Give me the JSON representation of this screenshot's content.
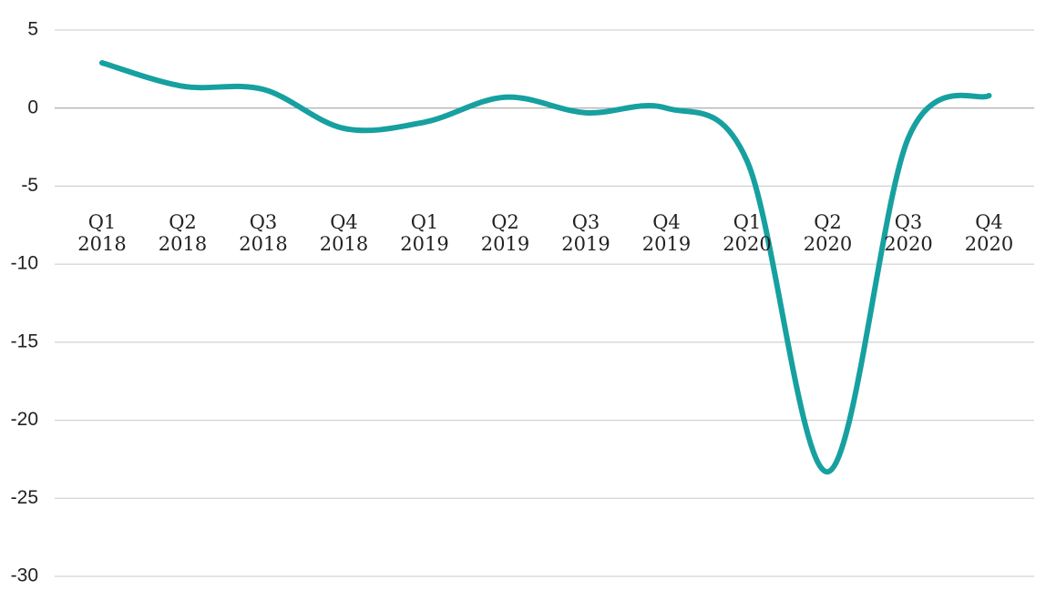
{
  "chart_data": {
    "type": "line",
    "categories": [
      "Q1 2018",
      "Q2 2018",
      "Q3 2018",
      "Q4 2018",
      "Q1 2019",
      "Q2 2019",
      "Q3 2019",
      "Q4 2019",
      "Q1 2020",
      "Q2 2020",
      "Q3 2020",
      "Q4 2020"
    ],
    "series": [
      {
        "color": "#17a0a0",
        "values": [
          2.9,
          1.4,
          1.2,
          -1.3,
          -0.9,
          0.7,
          -0.3,
          0.0,
          -3.4,
          -23.3,
          -1.9,
          0.8
        ]
      }
    ],
    "ylim": [
      -30,
      5
    ],
    "yticks": [
      5,
      0,
      -5,
      -10,
      -15,
      -20,
      -25,
      -30
    ],
    "grid": true
  }
}
